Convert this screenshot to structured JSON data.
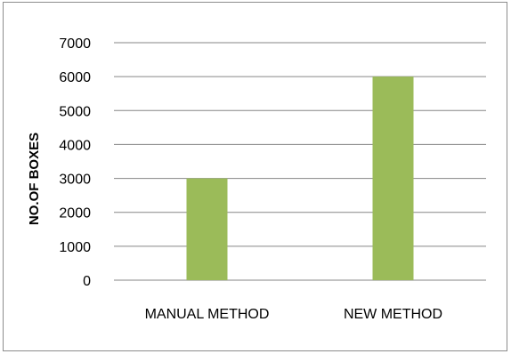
{
  "chart_data": {
    "type": "bar",
    "title": "",
    "xlabel": "",
    "ylabel": "NO.OF BOXES",
    "categories": [
      "MANUAL METHOD",
      "NEW METHOD"
    ],
    "values": [
      3000,
      6000
    ],
    "ylim": [
      0,
      7000
    ],
    "yticks": [
      0,
      1000,
      2000,
      3000,
      4000,
      5000,
      6000,
      7000
    ],
    "grid": true,
    "legend": "none",
    "bar_color": "#9bbb59",
    "grid_color": "#868686"
  }
}
